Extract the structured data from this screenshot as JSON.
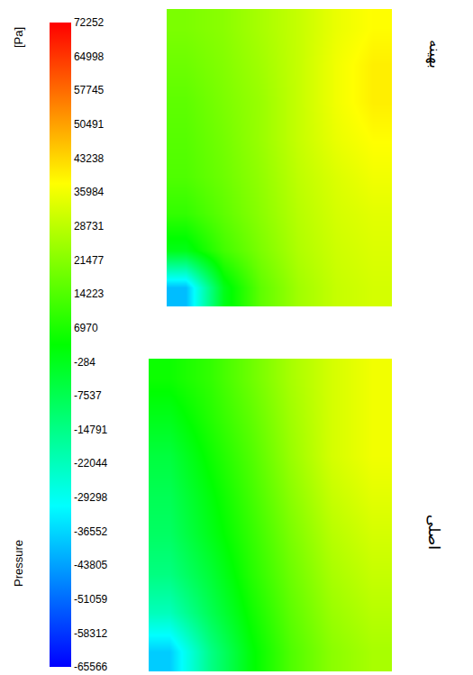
{
  "chart_data": {
    "type": "heatmap",
    "tick_labels": false,
    "panels": [
      {
        "label": "بهینه",
        "cells": [
          [
            20000,
            22000,
            26000,
            30000,
            35000,
            38000
          ],
          [
            18000,
            21000,
            25000,
            30000,
            36000,
            40000
          ],
          [
            16000,
            20000,
            24000,
            30000,
            36000,
            40000
          ],
          [
            15000,
            19000,
            24000,
            30000,
            35000,
            38000
          ],
          [
            14000,
            18000,
            23000,
            29000,
            33000,
            36000
          ],
          [
            10000,
            16000,
            22000,
            28000,
            32000,
            34000
          ],
          [
            0,
            12000,
            20000,
            27000,
            31000,
            33000
          ],
          [
            -40000,
            0,
            16000,
            25000,
            30000,
            32000
          ]
        ]
      },
      {
        "label": "اصلی",
        "cells": [
          [
            5000,
            10000,
            18000,
            26000,
            32000,
            36000
          ],
          [
            0,
            8000,
            16000,
            25000,
            32000,
            36000
          ],
          [
            -5000,
            5000,
            14000,
            24000,
            32000,
            36000
          ],
          [
            -8000,
            2000,
            12000,
            22000,
            30000,
            34000
          ],
          [
            -10000,
            0,
            10000,
            20000,
            28000,
            32000
          ],
          [
            -14000,
            -4000,
            8000,
            18000,
            26000,
            30000
          ],
          [
            -22000,
            -8000,
            5000,
            16000,
            24000,
            28000
          ],
          [
            -38000,
            -15000,
            2000,
            14000,
            22000,
            26000
          ]
        ]
      }
    ],
    "colorbar": {
      "title": "Pressure",
      "unit": "[Pa]",
      "range": [
        -65566,
        72252
      ],
      "ticks": [
        72252,
        64998,
        57745,
        50491,
        43238,
        35984,
        28731,
        21477,
        14223,
        6970,
        -284,
        -7537,
        -14791,
        -22044,
        -29298,
        -36552,
        -43805,
        -51059,
        -58312,
        -65566
      ]
    }
  }
}
